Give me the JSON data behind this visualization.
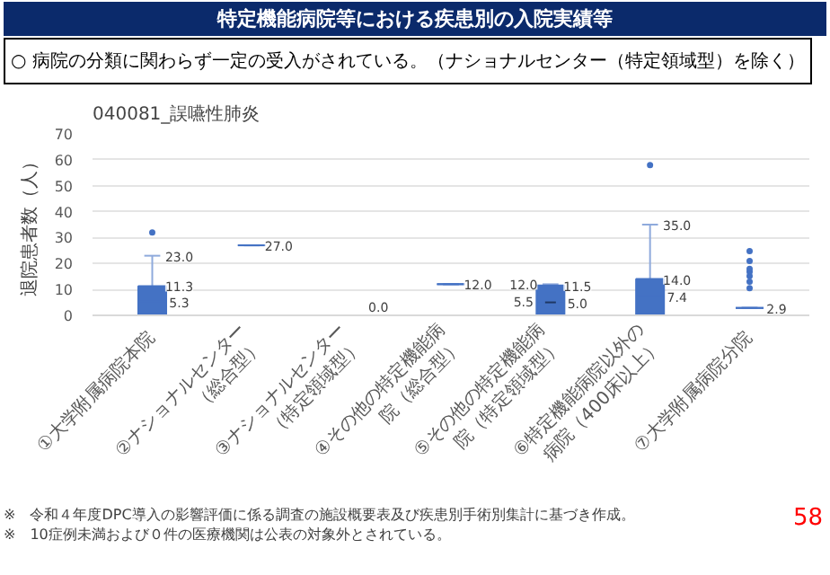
{
  "chart_data": {
    "type": "box",
    "title": "特定機能病院等における疾患別の入院実績等",
    "subtitle": "○ 病院の分類に関わらず一定の受入がされている。（ナショナルセンター（特定領域型）を除く）",
    "ylabel": "退院患者数（人）",
    "categories": [
      "①大学附属病院本院",
      "②ナショナルセンター（総合型）",
      "③ナショナルセンター（特定領域型）",
      "④その他の特定機能病院（総合型）",
      "⑤その他の特定機能病院（特定領域型）",
      "⑥特定機能病院以外の病院（400床以上）",
      "⑦大学附属病院分院"
    ],
    "series": [
      {
        "color": "#4472c4",
        "boxes": [
          {
            "low": 0,
            "q1": 0,
            "median": 5.3,
            "q3": 11.3,
            "high": 23.0,
            "outliers": [
              32
            ]
          },
          {
            "low": 27.0,
            "q1": 27.0,
            "median": 27.0,
            "q3": 27.0,
            "high": 27.0
          },
          {
            "low": 0.0,
            "q1": 0.0,
            "median": 0.0,
            "q3": 0.0,
            "high": 0.0
          },
          {
            "low": 12.0,
            "q1": 12.0,
            "median": 12.0,
            "q3": 12.0,
            "high": 12.0
          },
          {
            "low": 0,
            "q1": 0,
            "median": 5.5,
            "q3": 11.5,
            "high": 12.0,
            "mean": 5.0
          },
          {
            "low": 0,
            "q1": 0,
            "median": 7.4,
            "q3": 14.0,
            "high": 35.0,
            "outliers": [
              58
            ]
          },
          {
            "low": 2.9,
            "q1": 2.9,
            "median": 2.9,
            "q3": 2.9,
            "high": 2.9,
            "outliers": [
              10.5,
              13,
              15.2,
              16.8,
              17.9,
              21,
              24.8
            ]
          }
        ]
      }
    ],
    "ylim": [
      0,
      70
    ],
    "yticks": [
      0,
      10,
      20,
      30,
      40,
      50,
      60,
      70
    ],
    "grid": "y",
    "annotations": [
      "040081_誤嚥性肺炎",
      {
        "text": "23.0",
        "x": "①大学附属病院本院",
        "y": 23.0
      },
      {
        "text": "11.3",
        "x": "①大学附属病院本院",
        "y": 11.3
      },
      {
        "text": "5.3",
        "x": "①大学附属病院本院",
        "y": 5.3
      },
      {
        "text": "27.0",
        "x": "②ナショナルセンター（総合型）",
        "y": 27.0
      },
      {
        "text": "0.0",
        "x": "③ナショナルセンター（特定領域型）",
        "y": 0.0
      },
      {
        "text": "12.0",
        "x": "④その他の特定機能病院（総合型）",
        "y": 12.0
      },
      {
        "text": "12.0",
        "x": "⑤その他の特定機能病院（特定領域型）",
        "y": 12.0
      },
      {
        "text": "11.5",
        "x": "⑤その他の特定機能病院（特定領域型）",
        "y": 11.5
      },
      {
        "text": "5.5",
        "x": "⑤その他の特定機能病院（特定領域型）",
        "y": 5.5
      },
      {
        "text": "5.0",
        "x": "⑤その他の特定機能病院（特定領域型）",
        "y": 5.0
      },
      {
        "text": "35.0",
        "x": "⑥特定機能病院以外の病院（400床以上）",
        "y": 35.0
      },
      {
        "text": "14.0",
        "x": "⑥特定機能病院以外の病院（400床以上）",
        "y": 14.0
      },
      {
        "text": "7.4",
        "x": "⑥特定機能病院以外の病院（400床以上）",
        "y": 7.4
      },
      {
        "text": "2.9",
        "x": "⑦大学附属病院分院",
        "y": 2.9
      },
      "※　令和４年度DPC導入の影響評価に係る調査の施設概要表及び疾患別手術別集計に基づき作成。",
      "※　10症例未満および０件の医療機関は公表の対象外とされている。",
      "58"
    ]
  }
}
